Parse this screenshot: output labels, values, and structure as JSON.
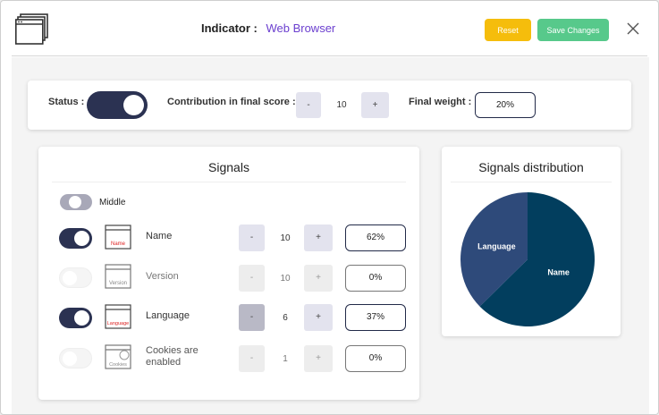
{
  "header": {
    "indicator_label": "Indicator :",
    "indicator_value": "Web Browser",
    "reset_label": "Reset",
    "save_label": "Save Changes"
  },
  "status_row": {
    "status_label": "Status :",
    "status_on": true,
    "contribution_label": "Contribution in final score :",
    "minus": "-",
    "contribution_value": "10",
    "plus": "+",
    "final_weight_label": "Final weight :",
    "final_weight_value": "20%"
  },
  "signals": {
    "title": "Signals",
    "middle_label": "Middle",
    "items": [
      {
        "name": "Name",
        "icon_text": "Name",
        "enabled": true,
        "minus": "-",
        "value": "10",
        "plus": "+",
        "weight": "62%"
      },
      {
        "name": "Version",
        "icon_text": "Version",
        "enabled": false,
        "minus": "-",
        "value": "10",
        "plus": "+",
        "weight": "0%"
      },
      {
        "name": "Language",
        "icon_text": "Language",
        "enabled": true,
        "minus": "-",
        "value": "6",
        "plus": "+",
        "weight": "37%"
      },
      {
        "name": "Cookies are enabled",
        "icon_text": "Cookies",
        "enabled": false,
        "minus": "-",
        "value": "1",
        "plus": "+",
        "weight": "0%"
      }
    ]
  },
  "distribution": {
    "title": "Signals distribution"
  },
  "chart_data": {
    "type": "pie",
    "title": "Signals distribution",
    "categories": [
      "Name",
      "Language"
    ],
    "values": [
      62,
      37
    ],
    "colors": [
      "#023e5e",
      "#2e4a7a"
    ]
  },
  "colors": {
    "accent_purple": "#6b3fcf",
    "reset": "#f5bd0c",
    "save": "#57c98b",
    "toggle_on": "#2b3252"
  }
}
